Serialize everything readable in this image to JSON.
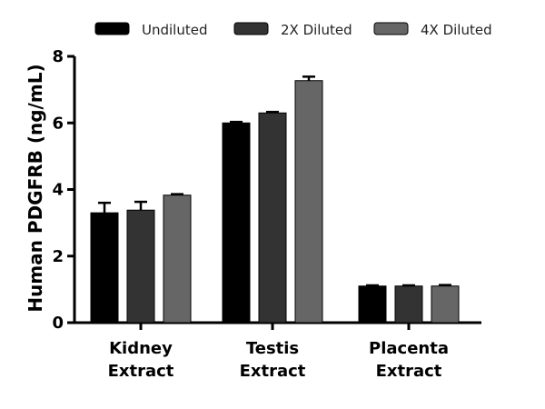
{
  "chart_data": {
    "type": "bar",
    "title": "",
    "xlabel": "",
    "ylabel": "Human PDGFRB (ng/mL)",
    "ylim": [
      0,
      8
    ],
    "yticks": [
      "0",
      "2",
      "4",
      "6",
      "8"
    ],
    "categories": [
      [
        "Kidney",
        "Extract"
      ],
      [
        "Testis",
        "Extract"
      ],
      [
        "Placenta",
        "Extract"
      ]
    ],
    "series": [
      {
        "name": "Undiluted",
        "color": "#000000",
        "values": [
          3.3,
          6.0,
          1.1
        ],
        "errors": [
          0.3,
          0.03,
          0.02
        ]
      },
      {
        "name": "2X Diluted",
        "color": "#333333",
        "values": [
          3.38,
          6.3,
          1.1
        ],
        "errors": [
          0.25,
          0.03,
          0.02
        ]
      },
      {
        "name": "4X Diluted",
        "color": "#666666",
        "values": [
          3.83,
          7.27,
          1.1
        ],
        "errors": [
          0.03,
          0.12,
          0.03
        ]
      }
    ],
    "legend_position": "top"
  }
}
